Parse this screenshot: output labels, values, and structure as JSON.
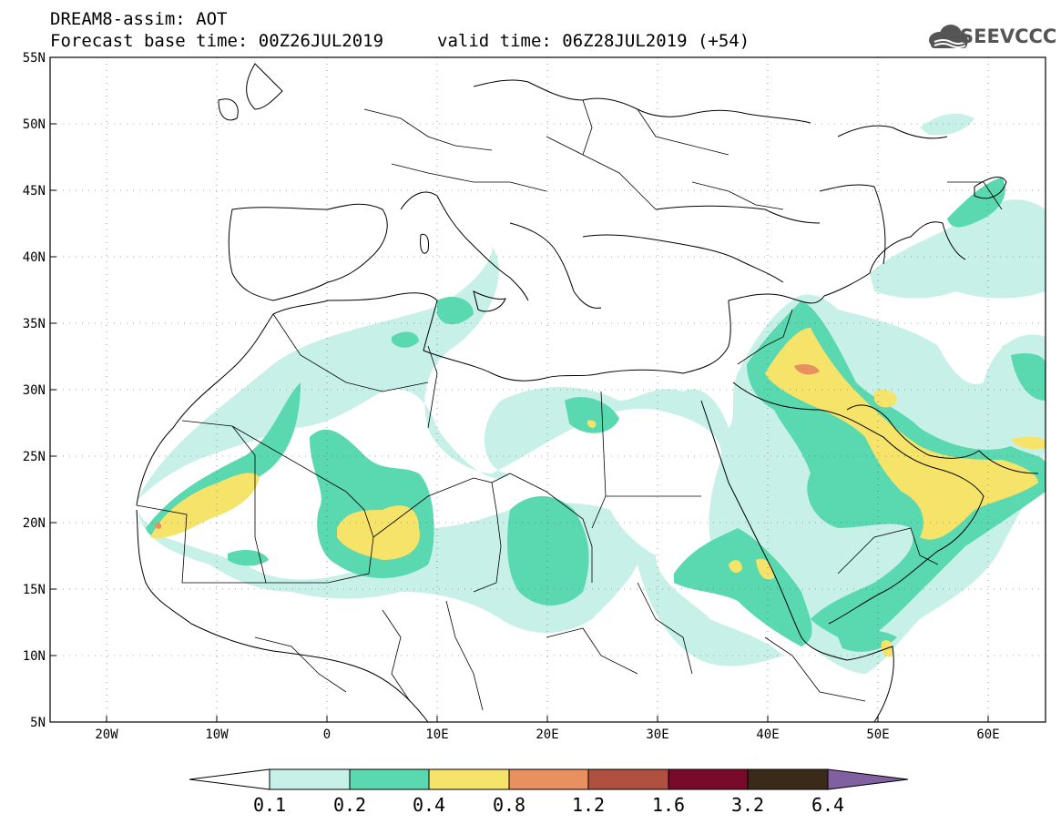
{
  "header": {
    "line1": "DREAM8-assim: AOT",
    "line2": "Forecast base time: 00Z26JUL2019",
    "line3": "valid time: 06Z28JUL2019 (+54)"
  },
  "logo": {
    "text": "SEEVCCC",
    "icon": "cloud-icon"
  },
  "axes": {
    "lat_labels": [
      "55N",
      "50N",
      "45N",
      "40N",
      "35N",
      "30N",
      "25N",
      "20N",
      "15N",
      "10N",
      "5N"
    ],
    "lon_labels": [
      "20W",
      "10W",
      "0",
      "10E",
      "20E",
      "30E",
      "40E",
      "50E",
      "60E"
    ]
  },
  "colorbar": {
    "labels": [
      "0.1",
      "0.2",
      "0.4",
      "0.8",
      "1.2",
      "1.6",
      "3.2",
      "6.4"
    ],
    "colors": [
      "#ffffff",
      "#c6f0e8",
      "#5ad8b0",
      "#f5e36a",
      "#e89060",
      "#b05040",
      "#7a0a2a",
      "#3a2a1a",
      "#8060a0"
    ]
  },
  "palette": {
    "l1": "#c6f0e8",
    "l2": "#5ad8b0",
    "l3": "#f5e36a",
    "l4": "#e89060"
  }
}
